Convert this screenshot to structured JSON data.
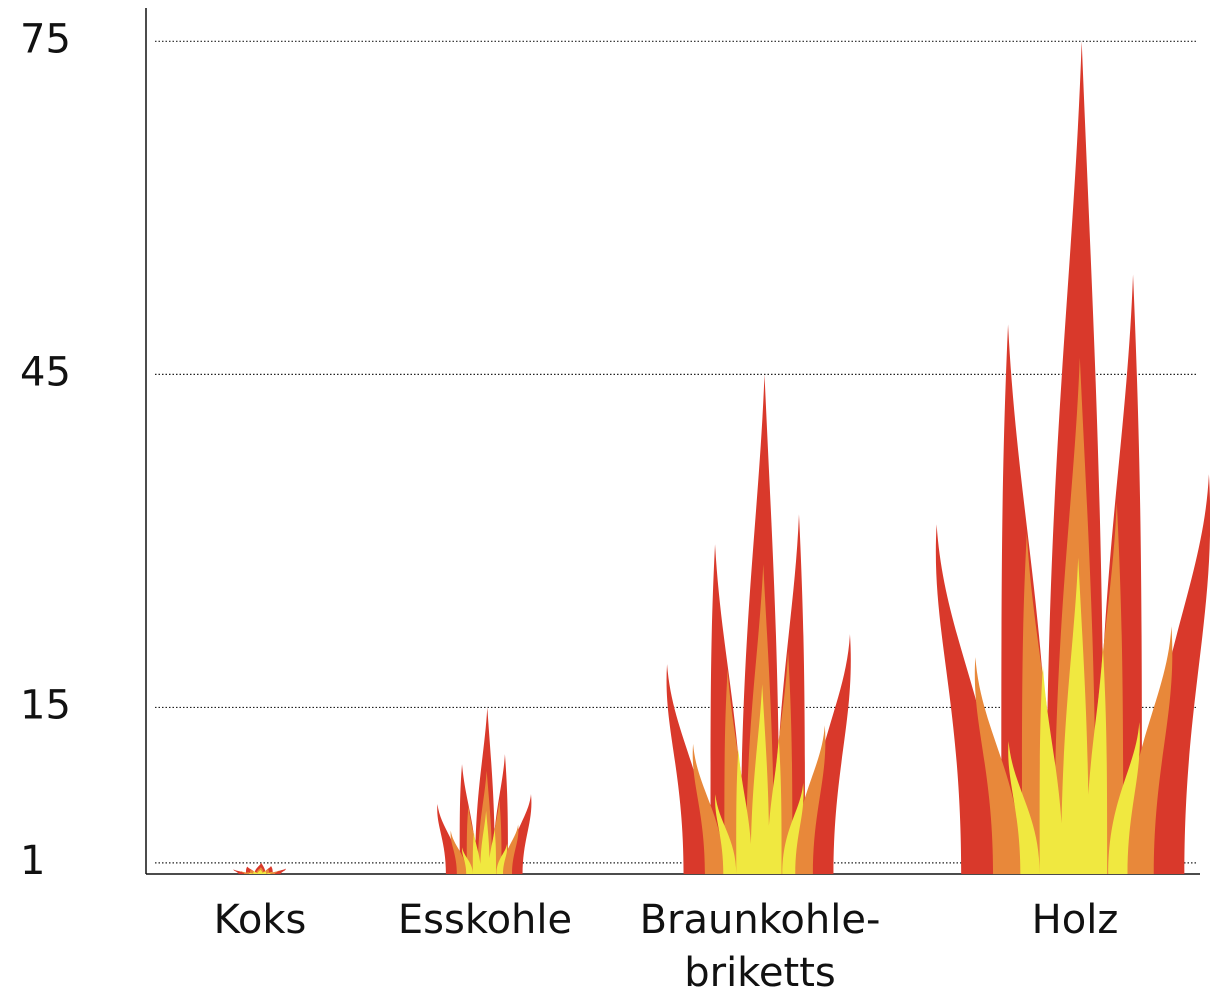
{
  "chart_data": {
    "type": "flame",
    "categories": [
      "Koks",
      "Esskohle",
      "Braunkohle-\nbriketts",
      "Holz"
    ],
    "values": [
      1,
      15,
      45,
      75
    ],
    "color": "#d9392b",
    "ylim": [
      0,
      78
    ],
    "yticks": [
      1,
      15,
      45,
      75
    ],
    "grid": true
  }
}
